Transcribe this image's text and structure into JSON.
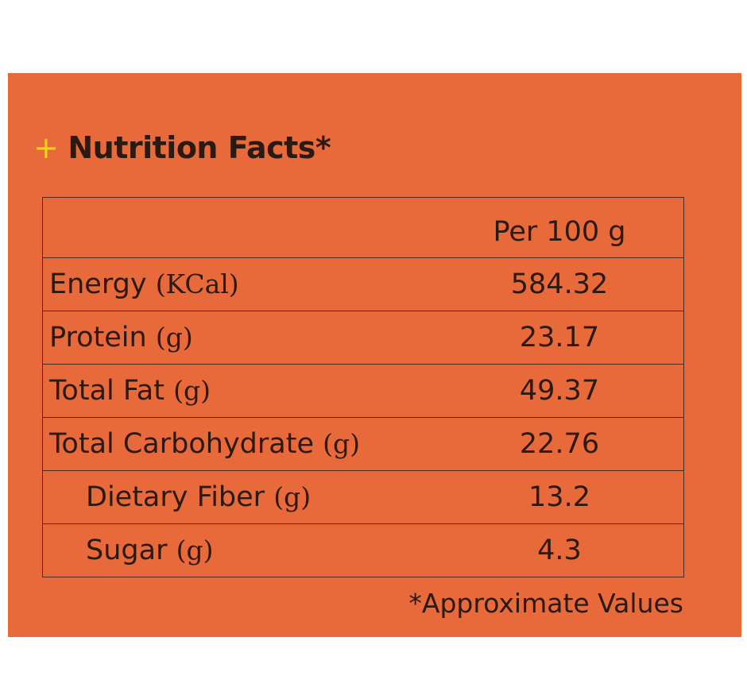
{
  "header": {
    "marker": "+",
    "title": "Nutrition Facts*"
  },
  "table": {
    "column_header": "Per 100 g",
    "rows": [
      {
        "label": "Energy",
        "unit": "(KCal)",
        "value": 584.32
      },
      {
        "label": "Protein",
        "unit": "(g)",
        "value": 23.17
      },
      {
        "label": "Total Fat",
        "unit": "(g)",
        "value": 49.37
      },
      {
        "label": "Total Carbohydrate",
        "unit": "(g)",
        "value": 22.76
      },
      {
        "label": "Dietary Fiber",
        "unit": "(g)",
        "value": 13.2
      },
      {
        "label": "Sugar",
        "unit": "(g)",
        "value": 4.3
      }
    ]
  },
  "footnote": "*Approximate Values"
}
